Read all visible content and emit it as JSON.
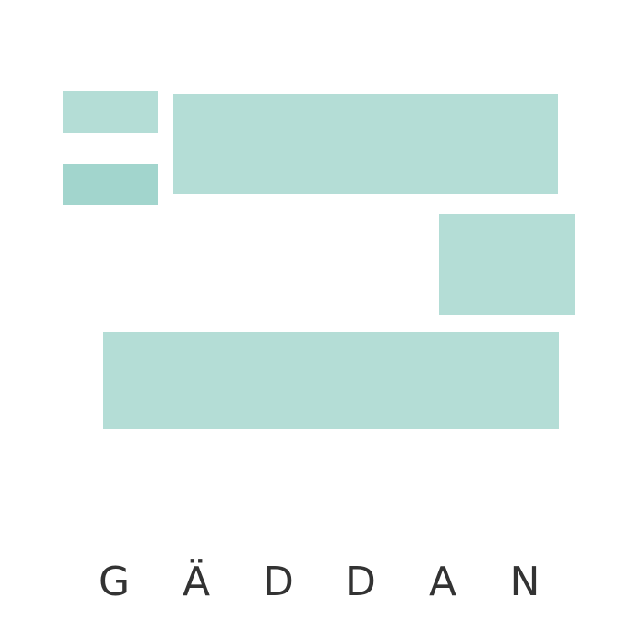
{
  "brand": {
    "name": "GÄDDAN",
    "letters": [
      "G",
      "Ä",
      "D",
      "D",
      "A",
      "N"
    ]
  },
  "colors": {
    "block_light": "#b4ddd6",
    "block_dark": "#a2d5cd",
    "text": "#333333",
    "background": "#ffffff"
  }
}
